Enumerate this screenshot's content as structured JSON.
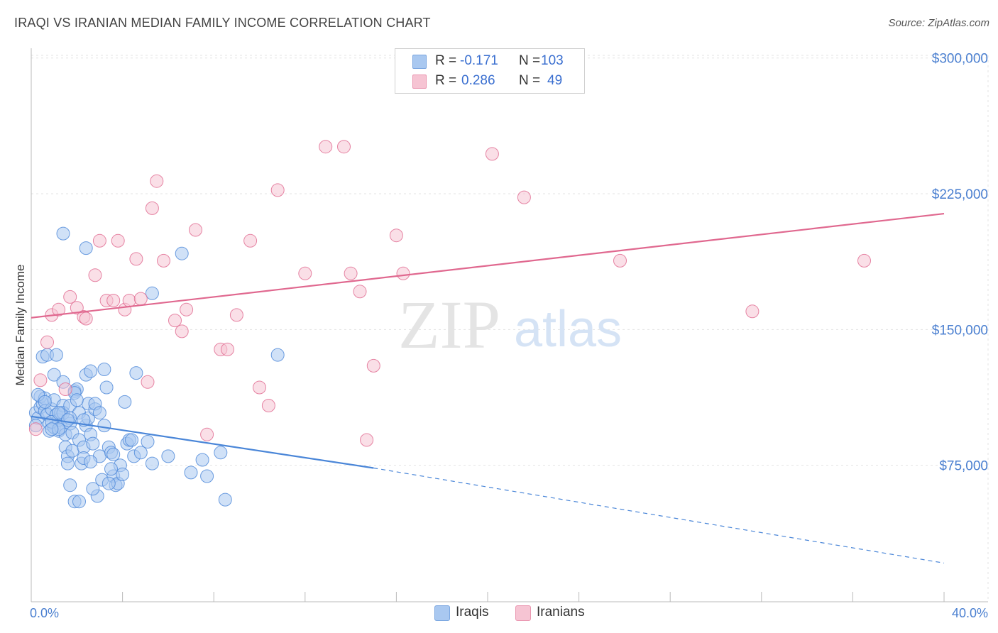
{
  "title": "IRAQI VS IRANIAN MEDIAN FAMILY INCOME CORRELATION CHART",
  "source": "Source: ZipAtlas.com",
  "watermark": {
    "zip": "ZIP",
    "atlas": "atlas"
  },
  "legend": {
    "rows": [
      {
        "r_label": "R =",
        "r_value": "-0.171",
        "n_label": "N =",
        "n_value": "103",
        "color": "#a9c8f0",
        "border": "#7aa6e0"
      },
      {
        "r_label": "R =",
        "r_value": "0.286",
        "n_label": "N =",
        "n_value": "49",
        "color": "#f6c4d3",
        "border": "#ea96b0"
      }
    ]
  },
  "bottom_legend": [
    {
      "label": "Iraqis",
      "color": "#a9c8f0",
      "border": "#7aa6e0"
    },
    {
      "label": "Iranians",
      "color": "#f6c4d3",
      "border": "#ea96b0"
    }
  ],
  "chart_data": {
    "type": "scatter",
    "title": "IRAQI VS IRANIAN MEDIAN FAMILY INCOME CORRELATION CHART",
    "xlabel": "",
    "ylabel": "Median Family Income",
    "x_tick_labels": [
      "0.0%",
      "40.0%"
    ],
    "y_tick_labels": [
      "$75,000",
      "$150,000",
      "$225,000",
      "$300,000"
    ],
    "y_ticks": [
      75000,
      150000,
      225000,
      300000
    ],
    "xlim": [
      0,
      40
    ],
    "ylim": [
      0,
      310000
    ],
    "grid": true,
    "series": [
      {
        "name": "Iraqis",
        "color": "#4a86d8",
        "fill": "#a9c8f0",
        "trend": {
          "x": [
            0,
            15
          ],
          "y": [
            102000,
            73500
          ],
          "dashed_to": {
            "x": 40,
            "y": 21000
          }
        },
        "points": [
          [
            0.2,
            104000
          ],
          [
            0.3,
            101000
          ],
          [
            0.2,
            97000
          ],
          [
            0.4,
            107000
          ],
          [
            0.5,
            109000
          ],
          [
            0.4,
            113000
          ],
          [
            0.6,
            112000
          ],
          [
            0.6,
            105000
          ],
          [
            0.7,
            103000
          ],
          [
            0.8,
            98000
          ],
          [
            0.8,
            94000
          ],
          [
            0.9,
            106000
          ],
          [
            1.0,
            96000
          ],
          [
            1.0,
            111000
          ],
          [
            1.1,
            103000
          ],
          [
            1.2,
            94000
          ],
          [
            1.2,
            100000
          ],
          [
            1.3,
            104000
          ],
          [
            1.3,
            96000
          ],
          [
            1.4,
            108000
          ],
          [
            1.4,
            104000
          ],
          [
            1.5,
            92000
          ],
          [
            1.5,
            85000
          ],
          [
            1.6,
            80000
          ],
          [
            1.6,
            76000
          ],
          [
            1.7,
            108000
          ],
          [
            1.7,
            98000
          ],
          [
            1.8,
            93000
          ],
          [
            1.8,
            83000
          ],
          [
            1.9,
            116000
          ],
          [
            2.0,
            117000
          ],
          [
            1.9,
            115000
          ],
          [
            2.1,
            104000
          ],
          [
            2.1,
            89000
          ],
          [
            2.2,
            76000
          ],
          [
            2.3,
            85000
          ],
          [
            2.3,
            79000
          ],
          [
            2.4,
            125000
          ],
          [
            2.4,
            97000
          ],
          [
            2.5,
            109000
          ],
          [
            2.5,
            101000
          ],
          [
            2.6,
            127000
          ],
          [
            2.6,
            92000
          ],
          [
            2.7,
            87000
          ],
          [
            2.8,
            106000
          ],
          [
            2.9,
            58000
          ],
          [
            3.0,
            80000
          ],
          [
            3.1,
            67000
          ],
          [
            3.2,
            97000
          ],
          [
            3.2,
            128000
          ],
          [
            3.3,
            118000
          ],
          [
            3.4,
            85000
          ],
          [
            3.5,
            82000
          ],
          [
            3.6,
            69000
          ],
          [
            3.7,
            64000
          ],
          [
            3.8,
            65000
          ],
          [
            3.9,
            75000
          ],
          [
            4.1,
            110000
          ],
          [
            4.2,
            87000
          ],
          [
            4.3,
            89000
          ],
          [
            4.4,
            89000
          ],
          [
            4.5,
            80000
          ],
          [
            4.6,
            126000
          ],
          [
            4.8,
            82000
          ],
          [
            5.1,
            88000
          ],
          [
            1.4,
            203000
          ],
          [
            2.4,
            195000
          ],
          [
            5.3,
            170000
          ],
          [
            6.6,
            192000
          ],
          [
            3.4,
            65000
          ],
          [
            7.0,
            71000
          ],
          [
            7.5,
            78000
          ],
          [
            7.7,
            69000
          ],
          [
            8.3,
            82000
          ],
          [
            8.5,
            56000
          ],
          [
            10.8,
            136000
          ],
          [
            0.5,
            135000
          ],
          [
            0.7,
            136000
          ],
          [
            1.1,
            136000
          ],
          [
            1.0,
            125000
          ],
          [
            1.4,
            121000
          ],
          [
            0.3,
            114000
          ],
          [
            0.6,
            110000
          ],
          [
            0.9,
            99000
          ],
          [
            1.2,
            104000
          ],
          [
            1.7,
            101000
          ],
          [
            2.0,
            111000
          ],
          [
            2.3,
            100000
          ],
          [
            2.6,
            77000
          ],
          [
            2.7,
            62000
          ],
          [
            1.7,
            64000
          ],
          [
            1.9,
            55000
          ],
          [
            2.1,
            55000
          ],
          [
            3.6,
            81000
          ],
          [
            4.0,
            70000
          ],
          [
            3.5,
            73000
          ],
          [
            1.2,
            95000
          ],
          [
            1.6,
            100000
          ],
          [
            2.8,
            109000
          ],
          [
            3.0,
            104000
          ],
          [
            0.9,
            95000
          ],
          [
            5.3,
            76000
          ],
          [
            6.0,
            80000
          ]
        ]
      },
      {
        "name": "Iranians",
        "color": "#e0688f",
        "fill": "#f6c4d3",
        "trend": {
          "x": [
            0,
            40
          ],
          "y": [
            156500,
            214000
          ]
        },
        "points": [
          [
            0.2,
            95000
          ],
          [
            0.4,
            122000
          ],
          [
            0.7,
            143000
          ],
          [
            0.9,
            158000
          ],
          [
            1.2,
            161000
          ],
          [
            1.5,
            117000
          ],
          [
            1.7,
            168000
          ],
          [
            2.0,
            162000
          ],
          [
            2.3,
            157000
          ],
          [
            2.4,
            156000
          ],
          [
            2.8,
            180000
          ],
          [
            3.0,
            199000
          ],
          [
            3.3,
            166000
          ],
          [
            3.6,
            166000
          ],
          [
            3.8,
            199000
          ],
          [
            4.1,
            161000
          ],
          [
            4.3,
            166000
          ],
          [
            4.6,
            189000
          ],
          [
            4.8,
            167000
          ],
          [
            5.1,
            121000
          ],
          [
            5.3,
            217000
          ],
          [
            5.5,
            232000
          ],
          [
            5.8,
            188000
          ],
          [
            6.3,
            155000
          ],
          [
            6.6,
            149000
          ],
          [
            6.8,
            161000
          ],
          [
            7.2,
            205000
          ],
          [
            7.7,
            92000
          ],
          [
            8.3,
            139000
          ],
          [
            8.6,
            139000
          ],
          [
            9.0,
            158000
          ],
          [
            9.6,
            199000
          ],
          [
            10.0,
            118000
          ],
          [
            10.4,
            108000
          ],
          [
            10.8,
            227000
          ],
          [
            12.0,
            181000
          ],
          [
            12.9,
            251000
          ],
          [
            13.7,
            251000
          ],
          [
            14.0,
            181000
          ],
          [
            14.4,
            171000
          ],
          [
            14.7,
            89000
          ],
          [
            15.0,
            130000
          ],
          [
            16.0,
            202000
          ],
          [
            16.3,
            181000
          ],
          [
            20.2,
            247000
          ],
          [
            21.6,
            223000
          ],
          [
            25.8,
            188000
          ],
          [
            31.6,
            160000
          ],
          [
            36.5,
            188000
          ]
        ]
      }
    ]
  }
}
